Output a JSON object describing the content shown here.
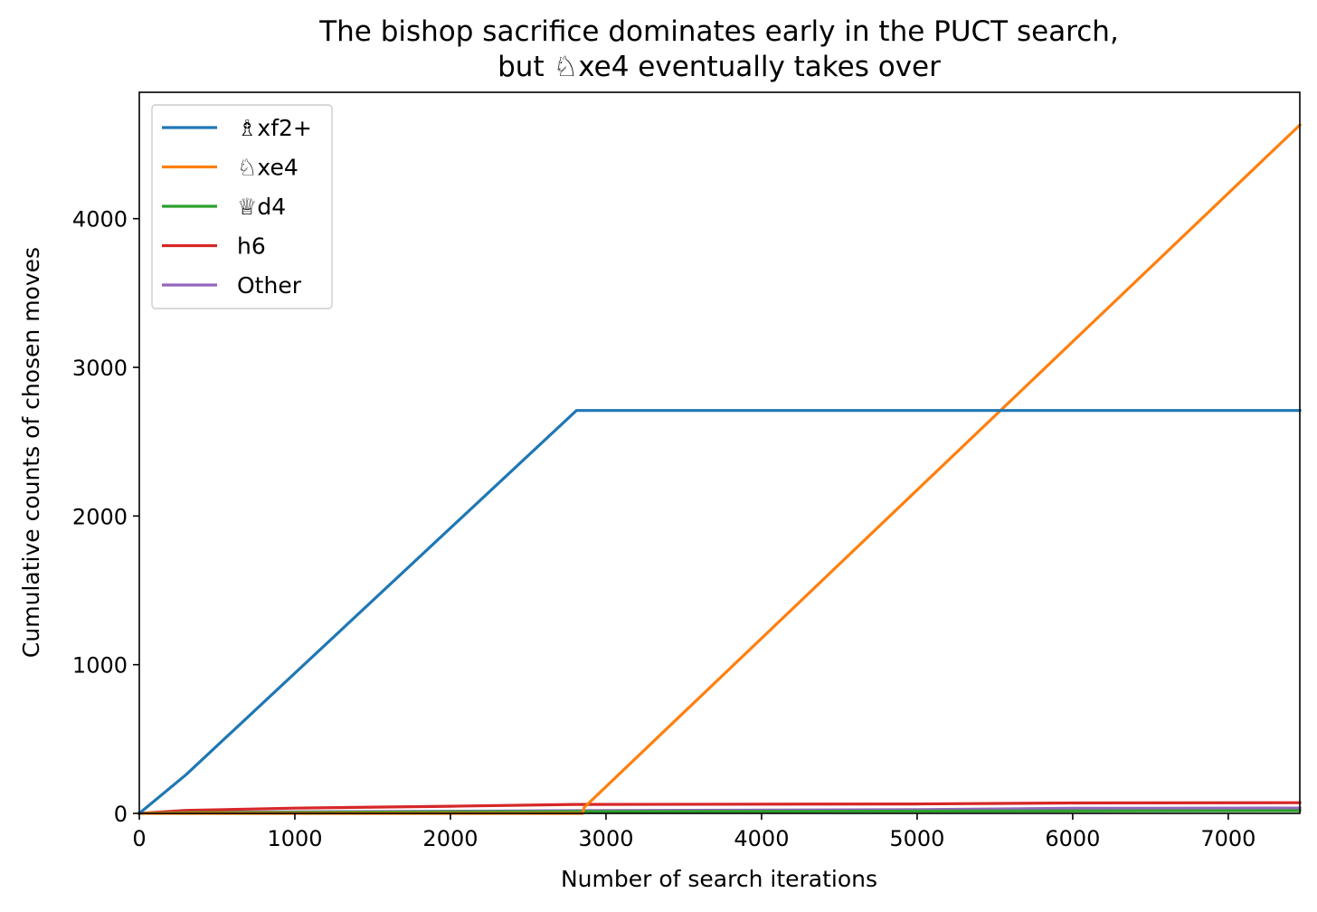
{
  "chart_data": {
    "type": "line",
    "title_lines": [
      "The bishop sacrifice dominates early in the PUCT search,",
      "but ♘xe4 eventually takes over"
    ],
    "xlabel": "Number of search iterations",
    "ylabel": "Cumulative counts of chosen moves",
    "xlim": [
      0,
      7460
    ],
    "ylim": [
      0,
      4850
    ],
    "xticks": [
      0,
      1000,
      2000,
      3000,
      4000,
      5000,
      6000,
      7000
    ],
    "yticks": [
      0,
      1000,
      2000,
      3000,
      4000
    ],
    "grid": false,
    "legend_position": "top-left",
    "series": [
      {
        "name": "♗xf2+",
        "color": "#1f77b4",
        "points": [
          [
            0,
            0
          ],
          [
            300,
            260
          ],
          [
            2810,
            2710
          ],
          [
            7460,
            2710
          ]
        ]
      },
      {
        "name": "♘xe4",
        "color": "#ff7f0e",
        "points": [
          [
            0,
            0
          ],
          [
            2850,
            0
          ],
          [
            2860,
            40
          ],
          [
            7460,
            4630
          ]
        ]
      },
      {
        "name": "♕d4",
        "color": "#2ca02c",
        "points": [
          [
            0,
            0
          ],
          [
            300,
            5
          ],
          [
            2800,
            12
          ],
          [
            5000,
            15
          ],
          [
            7460,
            18
          ]
        ]
      },
      {
        "name": "h6",
        "color": "#d62728",
        "points": [
          [
            0,
            0
          ],
          [
            300,
            20
          ],
          [
            1000,
            35
          ],
          [
            2000,
            48
          ],
          [
            2800,
            60
          ],
          [
            5000,
            63
          ],
          [
            6000,
            70
          ],
          [
            7460,
            72
          ]
        ]
      },
      {
        "name": "Other",
        "color": "#9467bd",
        "points": [
          [
            0,
            0
          ],
          [
            500,
            8
          ],
          [
            2800,
            18
          ],
          [
            5000,
            25
          ],
          [
            6000,
            34
          ],
          [
            7460,
            36
          ]
        ]
      }
    ]
  }
}
